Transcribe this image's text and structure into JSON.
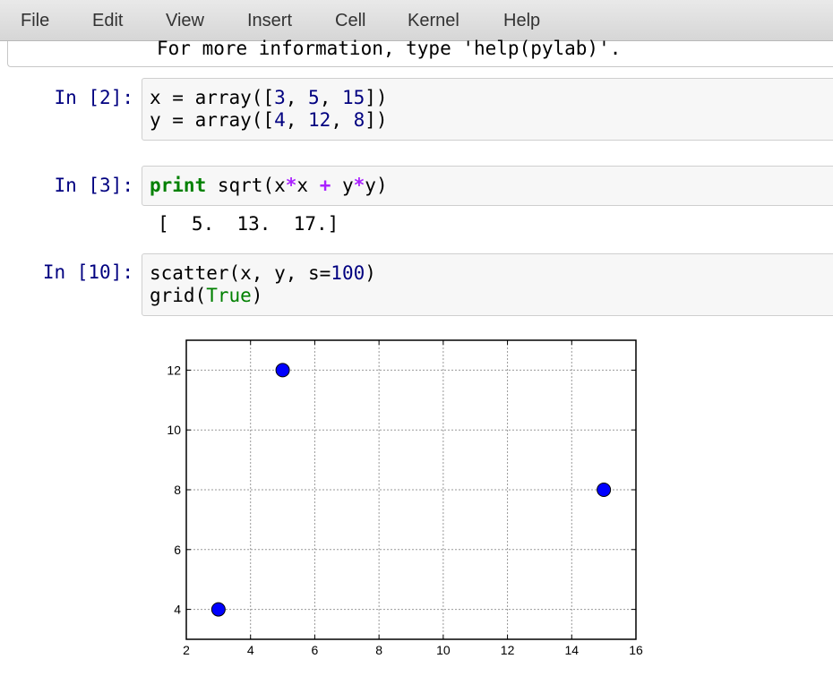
{
  "menubar": {
    "items": [
      "File",
      "Edit",
      "View",
      "Insert",
      "Cell",
      "Kernel",
      "Help"
    ]
  },
  "prev_output": {
    "text": "For more information, type 'help(pylab)'."
  },
  "cells": [
    {
      "prompt": "In [2]:",
      "lines": [
        [
          {
            "t": "x = array([",
            "c": ""
          },
          {
            "t": "3",
            "c": "num"
          },
          {
            "t": ", ",
            "c": ""
          },
          {
            "t": "5",
            "c": "num"
          },
          {
            "t": ", ",
            "c": ""
          },
          {
            "t": "15",
            "c": "num"
          },
          {
            "t": "])",
            "c": ""
          }
        ],
        [
          {
            "t": "y = array([",
            "c": ""
          },
          {
            "t": "4",
            "c": "num"
          },
          {
            "t": ", ",
            "c": ""
          },
          {
            "t": "12",
            "c": "num"
          },
          {
            "t": ", ",
            "c": ""
          },
          {
            "t": "8",
            "c": "num"
          },
          {
            "t": "])",
            "c": ""
          }
        ]
      ]
    },
    {
      "prompt": "In [3]:",
      "lines": [
        [
          {
            "t": "print",
            "c": "kw"
          },
          {
            "t": " sqrt(x",
            "c": ""
          },
          {
            "t": "*",
            "c": "op"
          },
          {
            "t": "x ",
            "c": ""
          },
          {
            "t": "+",
            "c": "op"
          },
          {
            "t": " y",
            "c": ""
          },
          {
            "t": "*",
            "c": "op"
          },
          {
            "t": "y)",
            "c": ""
          }
        ]
      ],
      "output": "[  5.  13.  17.]"
    },
    {
      "prompt": "In [10]:",
      "lines": [
        [
          {
            "t": "scatter(x, y, s=",
            "c": ""
          },
          {
            "t": "100",
            "c": "num"
          },
          {
            "t": ")",
            "c": ""
          }
        ],
        [
          {
            "t": "grid(",
            "c": ""
          },
          {
            "t": "True",
            "c": "builtin"
          },
          {
            "t": ")",
            "c": ""
          }
        ]
      ]
    }
  ],
  "chart_data": {
    "type": "scatter",
    "x": [
      3,
      5,
      15
    ],
    "y": [
      4,
      12,
      8
    ],
    "xlim": [
      2,
      16
    ],
    "ylim": [
      3,
      13
    ],
    "xticks": [
      2,
      4,
      6,
      8,
      10,
      12,
      14,
      16
    ],
    "yticks": [
      4,
      6,
      8,
      10,
      12
    ],
    "grid": true,
    "marker_color": "#0000ff",
    "title": "",
    "xlabel": "",
    "ylabel": ""
  }
}
